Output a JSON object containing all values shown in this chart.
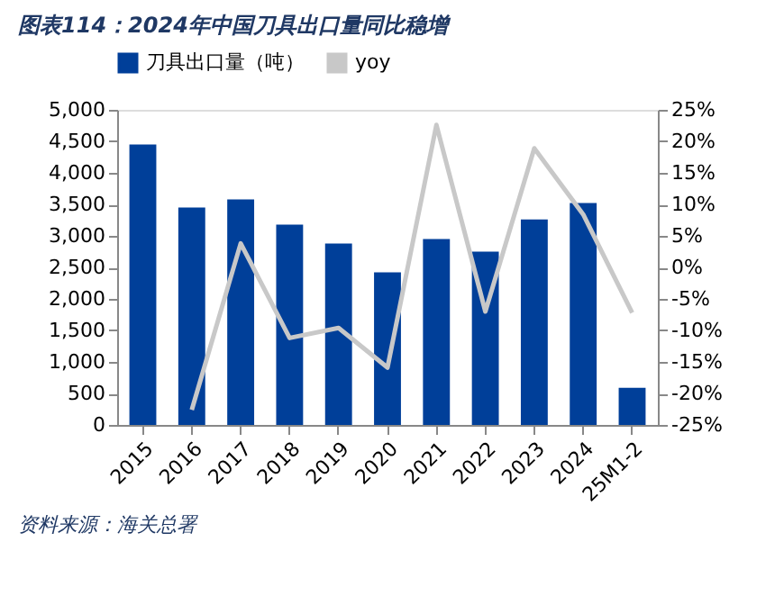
{
  "chart_data": {
    "type": "bar",
    "title": "图表114：2024年中国刀具出口量同比稳增",
    "categories": [
      "2015",
      "2016",
      "2017",
      "2018",
      "2019",
      "2020",
      "2021",
      "2022",
      "2023",
      "2024",
      "25M1-2"
    ],
    "series": [
      {
        "name": "刀具出口量（吨）",
        "color": "#003f99",
        "values": [
          4450,
          3450,
          3580,
          3180,
          2880,
          2420,
          2950,
          2750,
          3260,
          3520,
          590
        ]
      },
      {
        "name": "yoy",
        "type": "line",
        "axis": "y2",
        "color": "#c8c8c8",
        "values": [
          null,
          -22.6,
          3.8,
          -11.2,
          -9.6,
          -15.9,
          22.6,
          -7.0,
          18.9,
          8.4,
          -7.2
        ]
      }
    ],
    "ylim": [
      0,
      5000
    ],
    "yticks": [
      {
        "value": 0,
        "label": "0"
      },
      {
        "value": 500,
        "label": "500"
      },
      {
        "value": 1000,
        "label": "1,000"
      },
      {
        "value": 1500,
        "label": "1,500"
      },
      {
        "value": 2000,
        "label": "2,000"
      },
      {
        "value": 2500,
        "label": "2,500"
      },
      {
        "value": 3000,
        "label": "3,000"
      },
      {
        "value": 3500,
        "label": "3,500"
      },
      {
        "value": 4000,
        "label": "4,000"
      },
      {
        "value": 4500,
        "label": "4,500"
      },
      {
        "value": 5000,
        "label": "5,000"
      }
    ],
    "y2lim": [
      -25,
      25
    ],
    "y2ticks": [
      {
        "value": -25,
        "label": "-25%"
      },
      {
        "value": -20,
        "label": "-20%"
      },
      {
        "value": -15,
        "label": "-15%"
      },
      {
        "value": -10,
        "label": "-10%"
      },
      {
        "value": -5,
        "label": "-5%"
      },
      {
        "value": 0,
        "label": "0%"
      },
      {
        "value": 5,
        "label": "5%"
      },
      {
        "value": 10,
        "label": "10%"
      },
      {
        "value": 15,
        "label": "15%"
      },
      {
        "value": 20,
        "label": "20%"
      },
      {
        "value": 25,
        "label": "25%"
      }
    ],
    "legend": "top",
    "grid": false,
    "annotations": [
      "资料来源：海关总署"
    ]
  }
}
